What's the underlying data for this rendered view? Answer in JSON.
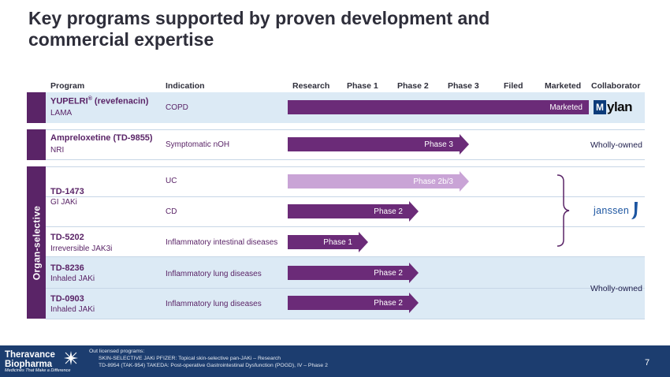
{
  "title": "Key programs supported by proven development and commercial expertise",
  "headers": {
    "program": "Program",
    "indication": "Indication",
    "research": "Research",
    "phase1": "Phase 1",
    "phase2": "Phase 2",
    "phase3": "Phase 3",
    "filed": "Filed",
    "marketed": "Marketed",
    "collaborator": "Collaborator"
  },
  "organ_selective_label": "Organ-selective",
  "rows": [
    {
      "program": "YUPELRI",
      "program_suffix": " (revefenacin)",
      "reg": "®",
      "subtitle": "LAMA",
      "indication": "COPD",
      "stage_label": "Marketed",
      "stage_fraction": 1.0
    },
    {
      "program": "Ampreloxetine (TD-9855)",
      "subtitle": "NRI",
      "indication": "Symptomatic nOH",
      "stage_label": "Phase 3",
      "stage_fraction": 0.5
    },
    {
      "program": "TD-1473",
      "subtitle": "GI JAKi",
      "indication": "UC",
      "stage_label": "Phase 2b/3",
      "stage_fraction": 0.5
    },
    {
      "indication": "CD",
      "stage_label": "Phase 2",
      "stage_fraction": 0.33
    },
    {
      "program": "TD-5202",
      "subtitle": "Irreversible JAK3i",
      "indication": "Inflammatory intestinal diseases",
      "stage_label": "Phase 1",
      "stage_fraction": 0.17
    },
    {
      "program": "TD-8236",
      "subtitle": "Inhaled JAKi",
      "indication": "Inflammatory lung diseases",
      "stage_label": "Phase 2",
      "stage_fraction": 0.33
    },
    {
      "program": "TD-0903",
      "subtitle": "Inhaled JAKi",
      "indication": "Inflammatory lung diseases",
      "stage_label": "Phase 2",
      "stage_fraction": 0.33
    }
  ],
  "collaborators": {
    "mylan_mark": "M",
    "mylan": "ylan",
    "wholly_owned_1": "Wholly-owned",
    "janssen": "janssen",
    "wholly_owned_2": "Wholly-owned"
  },
  "footer": {
    "logo_line1": "Theravance",
    "logo_line2": "Biopharma",
    "tagline": "Medicines That Make a Difference",
    "note_title": "Out licensed programs:",
    "note_1": "SKIN-SELECTIVE JAKi PFIZER: Topical skin-selective pan-JAKi – Research",
    "note_2": "TD-8954 (TAK-954) TAKEDA: Post-operative Gastrointestinal Dysfunction (POGD), IV – Phase 2",
    "page": "7"
  },
  "colors": {
    "primary_purple": "#6b2b78",
    "light_purple": "#c9a4d6",
    "band_blue": "#dceaf5",
    "footer_navy": "#1c3d6f"
  }
}
